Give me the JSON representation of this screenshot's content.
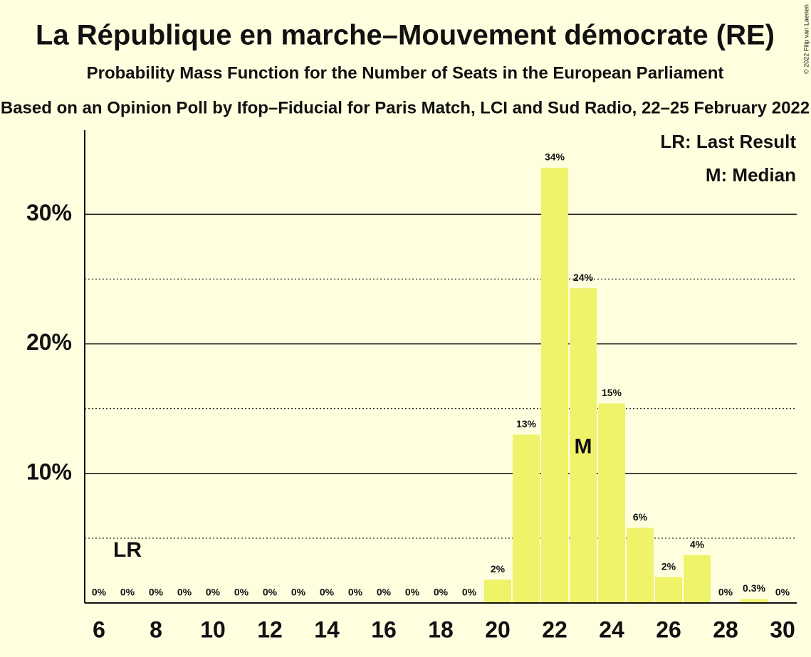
{
  "chart_data": {
    "type": "bar",
    "title": "La République en marche–Mouvement démocrate (RE)",
    "subtitle": "Probability Mass Function for the Number of Seats in the European Parliament",
    "caption": "Based on an Opinion Poll by Ifop–Fiducial for Paris Match, LCI and Sud Radio, 22–25 February 2022",
    "copyright": "© 2022 Filip van Laenen",
    "x": [
      6,
      7,
      8,
      9,
      10,
      11,
      12,
      13,
      14,
      15,
      16,
      17,
      18,
      19,
      20,
      21,
      22,
      23,
      24,
      25,
      26,
      27,
      28,
      29,
      30
    ],
    "values": [
      0,
      0,
      0,
      0,
      0,
      0,
      0,
      0,
      0,
      0,
      0,
      0,
      0,
      0,
      1.8,
      13.0,
      33.6,
      24.3,
      15.4,
      5.8,
      2.0,
      3.7,
      0,
      0.3,
      0
    ],
    "value_labels": [
      "0%",
      "0%",
      "0%",
      "0%",
      "0%",
      "0%",
      "0%",
      "0%",
      "0%",
      "0%",
      "0%",
      "0%",
      "0%",
      "0%",
      "2%",
      "13%",
      "34%",
      "24%",
      "15%",
      "6%",
      "2%",
      "4%",
      "0%",
      "0.3%",
      "0%"
    ],
    "color": "#eef36a",
    "xlim": [
      5.5,
      30.5
    ],
    "xticks": [
      6,
      8,
      10,
      12,
      14,
      16,
      18,
      20,
      22,
      24,
      26,
      28,
      30
    ],
    "ylim": [
      0,
      36.5
    ],
    "yticks": [
      {
        "value": 10,
        "label": "10%"
      },
      {
        "value": 20,
        "label": "20%"
      },
      {
        "value": 30,
        "label": "30%"
      }
    ],
    "minor_yticks": [
      5,
      15,
      25
    ],
    "grid": true,
    "annotations": [
      {
        "x": 7,
        "y": 4,
        "label": "LR"
      },
      {
        "x": 23,
        "y": 12,
        "label": "M"
      }
    ],
    "legend": [
      "LR: Last Result",
      "M: Median"
    ]
  }
}
